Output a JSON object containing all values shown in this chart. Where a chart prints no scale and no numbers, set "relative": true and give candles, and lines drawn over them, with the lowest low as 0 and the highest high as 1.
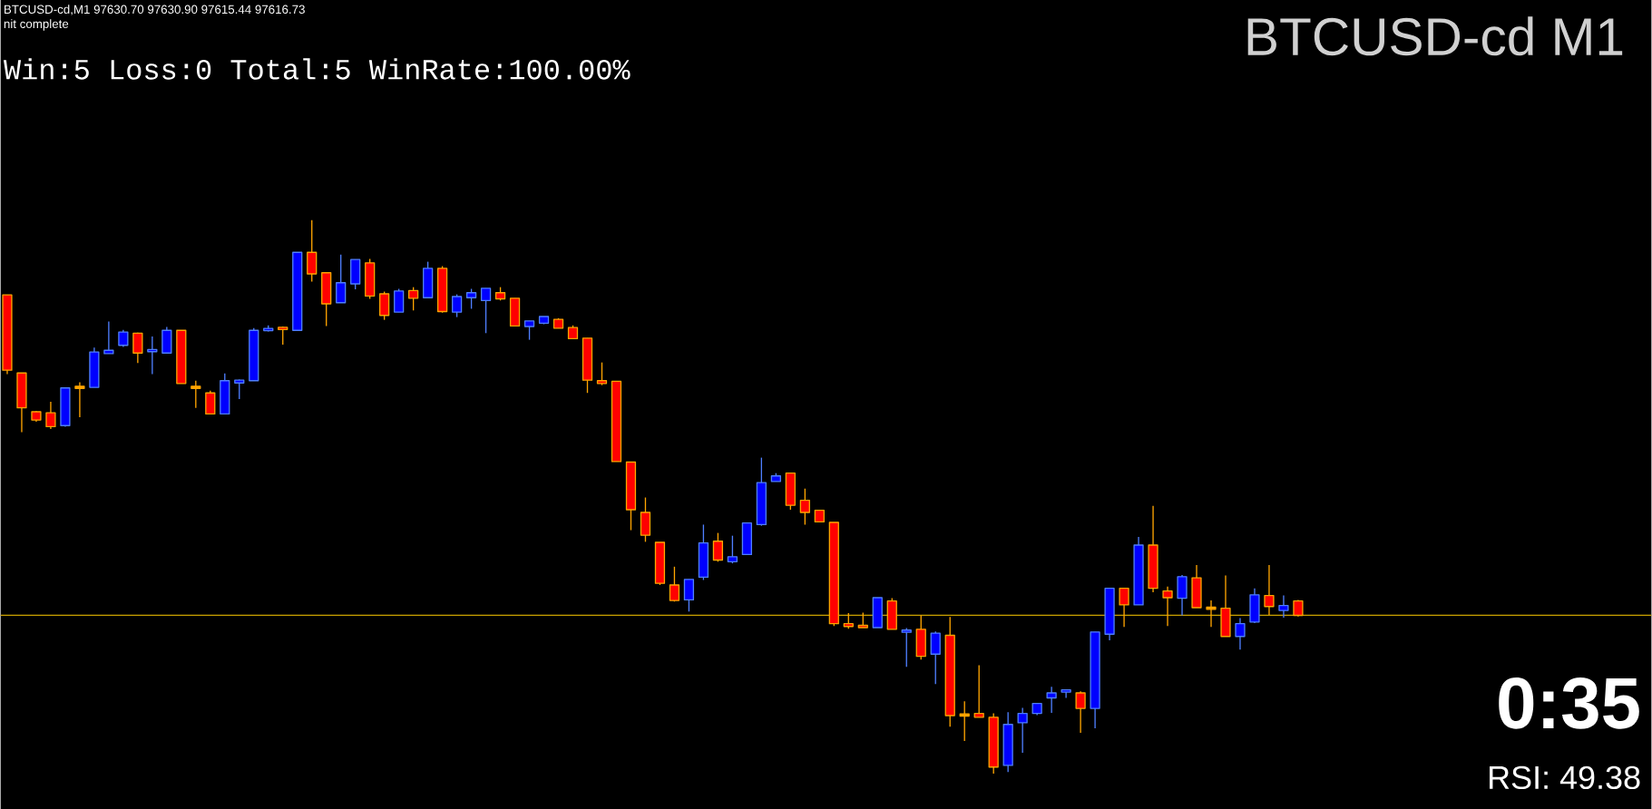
{
  "chart_data": {
    "type": "candlestick",
    "title": "BTCUSD-cd M1",
    "relative": true,
    "annotations": [
      "BTCUSD-cd,M1  97630.70 97630.90 97615.44 97616.73",
      "nit complete",
      "Win:5  Loss:0  Total:5  WinRate:100.00%",
      "0:35",
      "RSI: 49.38"
    ],
    "ref_lines": [
      {
        "axis": "y",
        "value": 0.286,
        "color": "#c8a000"
      }
    ],
    "categories": [
      null,
      null,
      null,
      null,
      null,
      null,
      null,
      null,
      null,
      null,
      null,
      null,
      null,
      null,
      null,
      null,
      null,
      null,
      null,
      null,
      null,
      null,
      null,
      null,
      null,
      null,
      null,
      null,
      null,
      null,
      null,
      null,
      null,
      null,
      null,
      null,
      null,
      null,
      null,
      null,
      null,
      null,
      null,
      null,
      null,
      null,
      null,
      null,
      null,
      null,
      null,
      null,
      null,
      null,
      null,
      null,
      null,
      null,
      null,
      null,
      null,
      null,
      null,
      null,
      null,
      null,
      null,
      null,
      null,
      null,
      null,
      null,
      null,
      null,
      null,
      null,
      null,
      null,
      null,
      null,
      null,
      null,
      null,
      null,
      null,
      null,
      null,
      null,
      null,
      null
    ],
    "ohlc": [
      [
        0.865,
        0.865,
        0.722,
        0.729
      ],
      [
        0.724,
        0.724,
        0.617,
        0.661
      ],
      [
        0.654,
        0.655,
        0.636,
        0.639
      ],
      [
        0.652,
        0.672,
        0.623,
        0.627
      ],
      [
        0.629,
        0.697,
        0.627,
        0.697
      ],
      [
        0.698,
        0.707,
        0.644,
        0.698
      ],
      [
        0.698,
        0.77,
        0.698,
        0.762
      ],
      [
        0.759,
        0.817,
        0.759,
        0.765
      ],
      [
        0.774,
        0.802,
        0.771,
        0.798
      ],
      [
        0.796,
        0.797,
        0.742,
        0.76
      ],
      [
        0.764,
        0.79,
        0.722,
        0.765
      ],
      [
        0.76,
        0.807,
        0.76,
        0.801
      ],
      [
        0.801,
        0.801,
        0.705,
        0.705
      ],
      [
        0.698,
        0.71,
        0.661,
        0.698
      ],
      [
        0.688,
        0.692,
        0.65,
        0.65
      ],
      [
        0.65,
        0.723,
        0.65,
        0.71
      ],
      [
        0.706,
        0.712,
        0.677,
        0.711
      ],
      [
        0.71,
        0.805,
        0.71,
        0.801
      ],
      [
        0.802,
        0.81,
        0.799,
        0.803
      ],
      [
        0.806,
        0.808,
        0.775,
        0.803
      ],
      [
        0.801,
        0.942,
        0.801,
        0.942
      ],
      [
        0.942,
        1,
        0.889,
        0.903
      ],
      [
        0.905,
        0.905,
        0.809,
        0.849
      ],
      [
        0.851,
        0.938,
        0.851,
        0.887
      ],
      [
        0.885,
        0.929,
        0.875,
        0.929
      ],
      [
        0.923,
        0.93,
        0.858,
        0.863
      ],
      [
        0.867,
        0.871,
        0.82,
        0.828
      ],
      [
        0.834,
        0.876,
        0.834,
        0.872
      ],
      [
        0.873,
        0.879,
        0.837,
        0.859
      ],
      [
        0.86,
        0.925,
        0.86,
        0.913
      ],
      [
        0.913,
        0.917,
        0.833,
        0.835
      ],
      [
        0.834,
        0.866,
        0.825,
        0.862
      ],
      [
        0.86,
        0.876,
        0.84,
        0.869
      ],
      [
        0.855,
        0.877,
        0.796,
        0.877
      ],
      [
        0.869,
        0.879,
        0.855,
        0.858
      ],
      [
        0.859,
        0.859,
        0.809,
        0.809
      ],
      [
        0.808,
        0.818,
        0.784,
        0.818
      ],
      [
        0.814,
        0.826,
        0.812,
        0.826
      ],
      [
        0.821,
        0.823,
        0.805,
        0.805
      ],
      [
        0.806,
        0.81,
        0.786,
        0.786
      ],
      [
        0.787,
        0.787,
        0.688,
        0.711
      ],
      [
        0.71,
        0.743,
        0.702,
        0.705
      ],
      [
        0.709,
        0.709,
        0.564,
        0.564
      ],
      [
        0.563,
        0.563,
        0.44,
        0.477
      ],
      [
        0.472,
        0.499,
        0.419,
        0.431
      ],
      [
        0.418,
        0.418,
        0.341,
        0.344
      ],
      [
        0.341,
        0.374,
        0.311,
        0.313
      ],
      [
        0.314,
        0.351,
        0.293,
        0.351
      ],
      [
        0.355,
        0.45,
        0.35,
        0.417
      ],
      [
        0.42,
        0.435,
        0.383,
        0.386
      ],
      [
        0.383,
        0.43,
        0.38,
        0.392
      ],
      [
        0.396,
        0.453,
        0.396,
        0.453
      ],
      [
        0.45,
        0.571,
        0.448,
        0.526
      ],
      [
        0.528,
        0.543,
        0.528,
        0.538
      ],
      [
        0.543,
        0.543,
        0.477,
        0.485
      ],
      [
        0.494,
        0.515,
        0.45,
        0.472
      ],
      [
        0.476,
        0.476,
        0.455,
        0.455
      ],
      [
        0.454,
        0.454,
        0.267,
        0.271
      ],
      [
        0.271,
        0.29,
        0.262,
        0.266
      ],
      [
        0.268,
        0.291,
        0.264,
        0.264
      ],
      [
        0.264,
        0.318,
        0.264,
        0.318
      ],
      [
        0.312,
        0.317,
        0.261,
        0.261
      ],
      [
        0.256,
        0.263,
        0.193,
        0.259
      ],
      [
        0.261,
        0.286,
        0.206,
        0.212
      ],
      [
        0.216,
        0.257,
        0.162,
        0.254
      ],
      [
        0.25,
        0.283,
        0.085,
        0.105
      ],
      [
        0.106,
        0.131,
        0.059,
        0.106
      ],
      [
        0.109,
        0.196,
        0.102,
        0.102
      ],
      [
        0.102,
        0.109,
        0,
        0.012
      ],
      [
        0.015,
        0.111,
        0.003,
        0.089
      ],
      [
        0.092,
        0.119,
        0.038,
        0.109
      ],
      [
        0.109,
        0.127,
        0.106,
        0.127
      ],
      [
        0.137,
        0.157,
        0.11,
        0.146
      ],
      [
        0.149,
        0.15,
        0.137,
        0.15
      ],
      [
        0.146,
        0.149,
        0.074,
        0.118
      ],
      [
        0.118,
        0.256,
        0.082,
        0.256
      ],
      [
        0.252,
        0.336,
        0.241,
        0.335
      ],
      [
        0.335,
        0.335,
        0.265,
        0.305
      ],
      [
        0.305,
        0.428,
        0.305,
        0.413
      ],
      [
        0.413,
        0.484,
        0.328,
        0.335
      ],
      [
        0.33,
        0.338,
        0.267,
        0.318
      ],
      [
        0.317,
        0.359,
        0.286,
        0.356
      ],
      [
        0.354,
        0.377,
        0.3,
        0.3
      ],
      [
        0.299,
        0.313,
        0.265,
        0.299
      ],
      [
        0.299,
        0.358,
        0.248,
        0.248
      ],
      [
        0.248,
        0.281,
        0.224,
        0.271
      ],
      [
        0.274,
        0.335,
        0.272,
        0.323
      ],
      [
        0.322,
        0.377,
        0.287,
        0.302
      ],
      [
        0.295,
        0.322,
        0.282,
        0.304
      ],
      [
        0.312,
        0.314,
        0.284,
        0.286
      ]
    ]
  }
}
